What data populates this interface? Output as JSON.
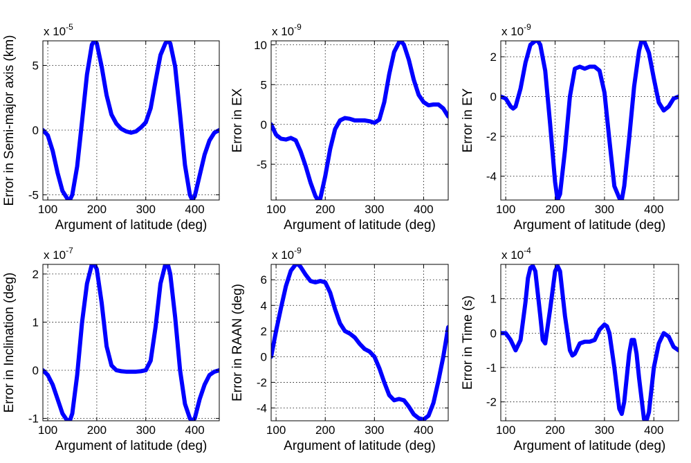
{
  "colors": {
    "line": "#0000ff",
    "grid": "#000000",
    "axis": "#000000"
  },
  "chart_data": [
    {
      "type": "line",
      "xlabel": "Argument of latitude (deg)",
      "ylabel": "Error in Semi-major axis (km)",
      "exponent": "-5",
      "xlim": [
        90,
        450
      ],
      "ylim": [
        -5.4,
        6.9
      ],
      "xticks": [
        100,
        200,
        300,
        400
      ],
      "yticks": [
        -5,
        0,
        5
      ],
      "grid": true,
      "series": [
        {
          "color": "#0000ff",
          "x": [
            90,
            100,
            110,
            120,
            130,
            140,
            145,
            150,
            160,
            170,
            180,
            190,
            195,
            200,
            210,
            220,
            230,
            240,
            250,
            260,
            270,
            280,
            290,
            300,
            310,
            320,
            330,
            340,
            345,
            350,
            360,
            370,
            380,
            390,
            395,
            400,
            410,
            420,
            430,
            440,
            450
          ],
          "y": [
            0,
            -0.4,
            -1.6,
            -3.3,
            -4.7,
            -5.3,
            -5.4,
            -5.0,
            -2.8,
            0.7,
            4.3,
            6.6,
            6.9,
            6.7,
            4.9,
            2.7,
            1.2,
            0.5,
            0.1,
            -0.1,
            -0.2,
            -0.1,
            0.2,
            0.6,
            1.7,
            3.8,
            5.8,
            6.7,
            6.9,
            6.7,
            4.9,
            1.2,
            -2.7,
            -5.0,
            -5.4,
            -5.1,
            -3.5,
            -1.9,
            -0.8,
            -0.2,
            0
          ]
        }
      ]
    },
    {
      "type": "line",
      "xlabel": "Argument of latitude (deg)",
      "ylabel": "Error in EX",
      "exponent": "-9",
      "xlim": [
        90,
        450
      ],
      "ylim": [
        -9.5,
        10.5
      ],
      "xticks": [
        100,
        200,
        300,
        400
      ],
      "yticks": [
        -5,
        0,
        5,
        10
      ],
      "grid": true,
      "series": [
        {
          "color": "#0000ff",
          "x": [
            90,
            100,
            110,
            120,
            130,
            140,
            150,
            160,
            170,
            180,
            185,
            190,
            200,
            210,
            220,
            230,
            240,
            250,
            260,
            270,
            280,
            290,
            300,
            310,
            320,
            330,
            340,
            350,
            355,
            360,
            370,
            380,
            390,
            400,
            410,
            420,
            430,
            440,
            450
          ],
          "y": [
            0,
            -1.3,
            -1.8,
            -1.9,
            -1.7,
            -2.0,
            -3.4,
            -5.2,
            -7.3,
            -9.0,
            -9.5,
            -9.3,
            -6.5,
            -3.1,
            -0.6,
            0.5,
            0.8,
            0.7,
            0.5,
            0.5,
            0.5,
            0.4,
            0.2,
            0.6,
            2.8,
            6.3,
            9.1,
            10.3,
            10.4,
            10.0,
            8.1,
            5.6,
            3.7,
            2.8,
            2.4,
            2.5,
            2.5,
            2.0,
            1.0
          ]
        }
      ]
    },
    {
      "type": "line",
      "xlabel": "Argument of latitude (deg)",
      "ylabel": "Error in EY",
      "exponent": "-9",
      "xlim": [
        90,
        450
      ],
      "ylim": [
        -5.2,
        2.8
      ],
      "xticks": [
        100,
        200,
        300,
        400
      ],
      "yticks": [
        -4,
        -2,
        0,
        2
      ],
      "grid": true,
      "series": [
        {
          "color": "#0000ff",
          "x": [
            90,
            100,
            110,
            115,
            120,
            130,
            140,
            150,
            160,
            165,
            170,
            180,
            190,
            200,
            205,
            210,
            220,
            230,
            240,
            250,
            260,
            270,
            280,
            290,
            300,
            310,
            320,
            330,
            335,
            340,
            350,
            360,
            370,
            375,
            380,
            390,
            400,
            410,
            420,
            430,
            440,
            450
          ],
          "y": [
            0,
            -0.1,
            -0.5,
            -0.6,
            -0.5,
            0.4,
            1.7,
            2.6,
            2.8,
            2.8,
            2.6,
            1.3,
            -1.4,
            -4.3,
            -5.2,
            -4.9,
            -2.7,
            0.0,
            1.4,
            1.5,
            1.4,
            1.5,
            1.5,
            1.3,
            0.2,
            -2.2,
            -4.5,
            -5.1,
            -5.2,
            -4.5,
            -2.1,
            0.5,
            2.3,
            2.8,
            2.8,
            2.2,
            0.9,
            -0.3,
            -0.7,
            -0.5,
            -0.1,
            0
          ]
        }
      ]
    },
    {
      "type": "line",
      "xlabel": "Argument of latitude (deg)",
      "ylabel": "Error in Inclination (deg)",
      "exponent": "-7",
      "xlim": [
        90,
        450
      ],
      "ylim": [
        -1.05,
        2.2
      ],
      "xticks": [
        100,
        200,
        300,
        400
      ],
      "yticks": [
        -1,
        0,
        1,
        2
      ],
      "grid": true,
      "series": [
        {
          "color": "#0000ff",
          "x": [
            90,
            100,
            110,
            120,
            130,
            140,
            145,
            150,
            160,
            170,
            180,
            190,
            195,
            200,
            210,
            220,
            230,
            240,
            250,
            260,
            270,
            280,
            290,
            300,
            310,
            320,
            330,
            340,
            345,
            350,
            360,
            370,
            380,
            390,
            395,
            400,
            410,
            420,
            430,
            440,
            450
          ],
          "y": [
            0,
            -0.1,
            -0.3,
            -0.6,
            -0.9,
            -1.05,
            -1.05,
            -0.9,
            -0.1,
            1.0,
            1.8,
            2.2,
            2.2,
            2.1,
            1.4,
            0.5,
            0.1,
            0.0,
            -0.02,
            -0.03,
            -0.03,
            -0.03,
            -0.02,
            0.0,
            0.2,
            0.9,
            1.8,
            2.2,
            2.2,
            2.0,
            1.1,
            0.0,
            -0.7,
            -1.0,
            -1.05,
            -1.0,
            -0.6,
            -0.3,
            -0.1,
            -0.03,
            0
          ]
        }
      ]
    },
    {
      "type": "line",
      "xlabel": "Argument of latitude (deg)",
      "ylabel": "Error in RAAN (deg)",
      "exponent": "-9",
      "xlim": [
        90,
        450
      ],
      "ylim": [
        -5,
        7.2
      ],
      "xticks": [
        100,
        200,
        300,
        400
      ],
      "yticks": [
        -4,
        -2,
        0,
        2,
        4,
        6
      ],
      "grid": true,
      "series": [
        {
          "color": "#0000ff",
          "x": [
            90,
            100,
            110,
            120,
            130,
            140,
            145,
            150,
            160,
            170,
            180,
            190,
            200,
            210,
            220,
            230,
            240,
            250,
            260,
            270,
            280,
            290,
            300,
            310,
            320,
            330,
            340,
            350,
            360,
            370,
            380,
            390,
            400,
            410,
            420,
            430,
            440,
            450
          ],
          "y": [
            0,
            2.0,
            3.8,
            5.5,
            6.7,
            7.2,
            7.2,
            7.0,
            6.4,
            5.9,
            5.8,
            5.9,
            5.8,
            5.0,
            3.7,
            2.6,
            2.0,
            1.8,
            1.5,
            1.0,
            0.6,
            0.4,
            0.0,
            -0.9,
            -2.0,
            -3.0,
            -3.4,
            -3.3,
            -3.4,
            -3.9,
            -4.5,
            -4.8,
            -4.9,
            -4.6,
            -3.6,
            -1.9,
            0.0,
            2.3
          ]
        }
      ]
    },
    {
      "type": "line",
      "xlabel": "Argument of latitude (deg)",
      "ylabel": "Error in Time (s)",
      "exponent": "-4",
      "xlim": [
        90,
        450
      ],
      "ylim": [
        -2.55,
        2.0
      ],
      "xticks": [
        100,
        200,
        300,
        400
      ],
      "yticks": [
        -2,
        -1,
        0,
        1
      ],
      "grid": true,
      "series": [
        {
          "color": "#0000ff",
          "x": [
            90,
            100,
            110,
            120,
            130,
            140,
            145,
            150,
            155,
            160,
            170,
            175,
            180,
            190,
            200,
            205,
            210,
            220,
            230,
            235,
            240,
            250,
            260,
            270,
            280,
            290,
            300,
            305,
            310,
            320,
            330,
            335,
            340,
            350,
            355,
            360,
            365,
            370,
            380,
            385,
            390,
            400,
            410,
            420,
            430,
            440,
            450
          ],
          "y": [
            0,
            0.0,
            -0.2,
            -0.5,
            -0.2,
            0.9,
            1.6,
            1.9,
            1.95,
            1.8,
            0.5,
            -0.2,
            -0.3,
            0.7,
            1.8,
            1.95,
            1.8,
            0.5,
            -0.5,
            -0.65,
            -0.6,
            -0.3,
            -0.25,
            -0.25,
            -0.2,
            0.1,
            0.25,
            0.2,
            0.0,
            -1.0,
            -2.2,
            -2.35,
            -2.0,
            -0.6,
            -0.2,
            -0.2,
            -0.6,
            -1.3,
            -2.5,
            -2.55,
            -2.3,
            -1.0,
            -0.3,
            0.0,
            -0.1,
            -0.4,
            -0.5
          ]
        }
      ]
    }
  ]
}
